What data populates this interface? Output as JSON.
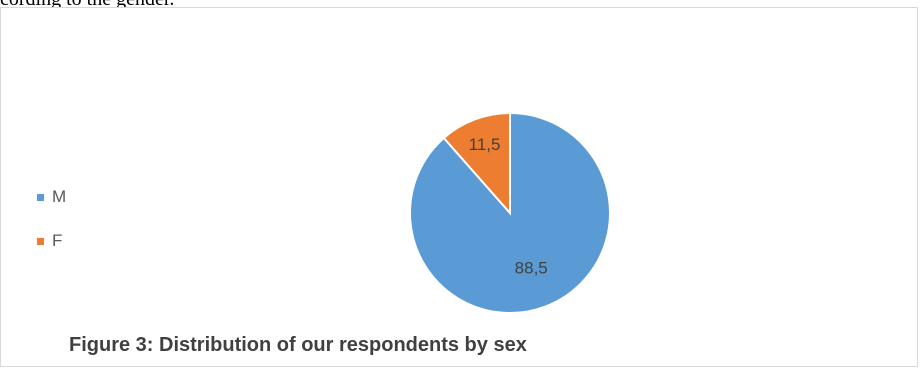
{
  "page": {
    "top_text": "cording to the gender."
  },
  "chart_data": {
    "type": "pie",
    "categories": [
      "M",
      "F"
    ],
    "values": [
      88.5,
      11.5
    ],
    "value_labels": [
      "88,5",
      "11,5"
    ],
    "colors": [
      "#5b9bd5",
      "#ed7d31"
    ],
    "legend": {
      "placement": "left",
      "entries": [
        "M",
        "F"
      ]
    },
    "caption": "Figure 3: Distribution of our respondents by sex"
  }
}
